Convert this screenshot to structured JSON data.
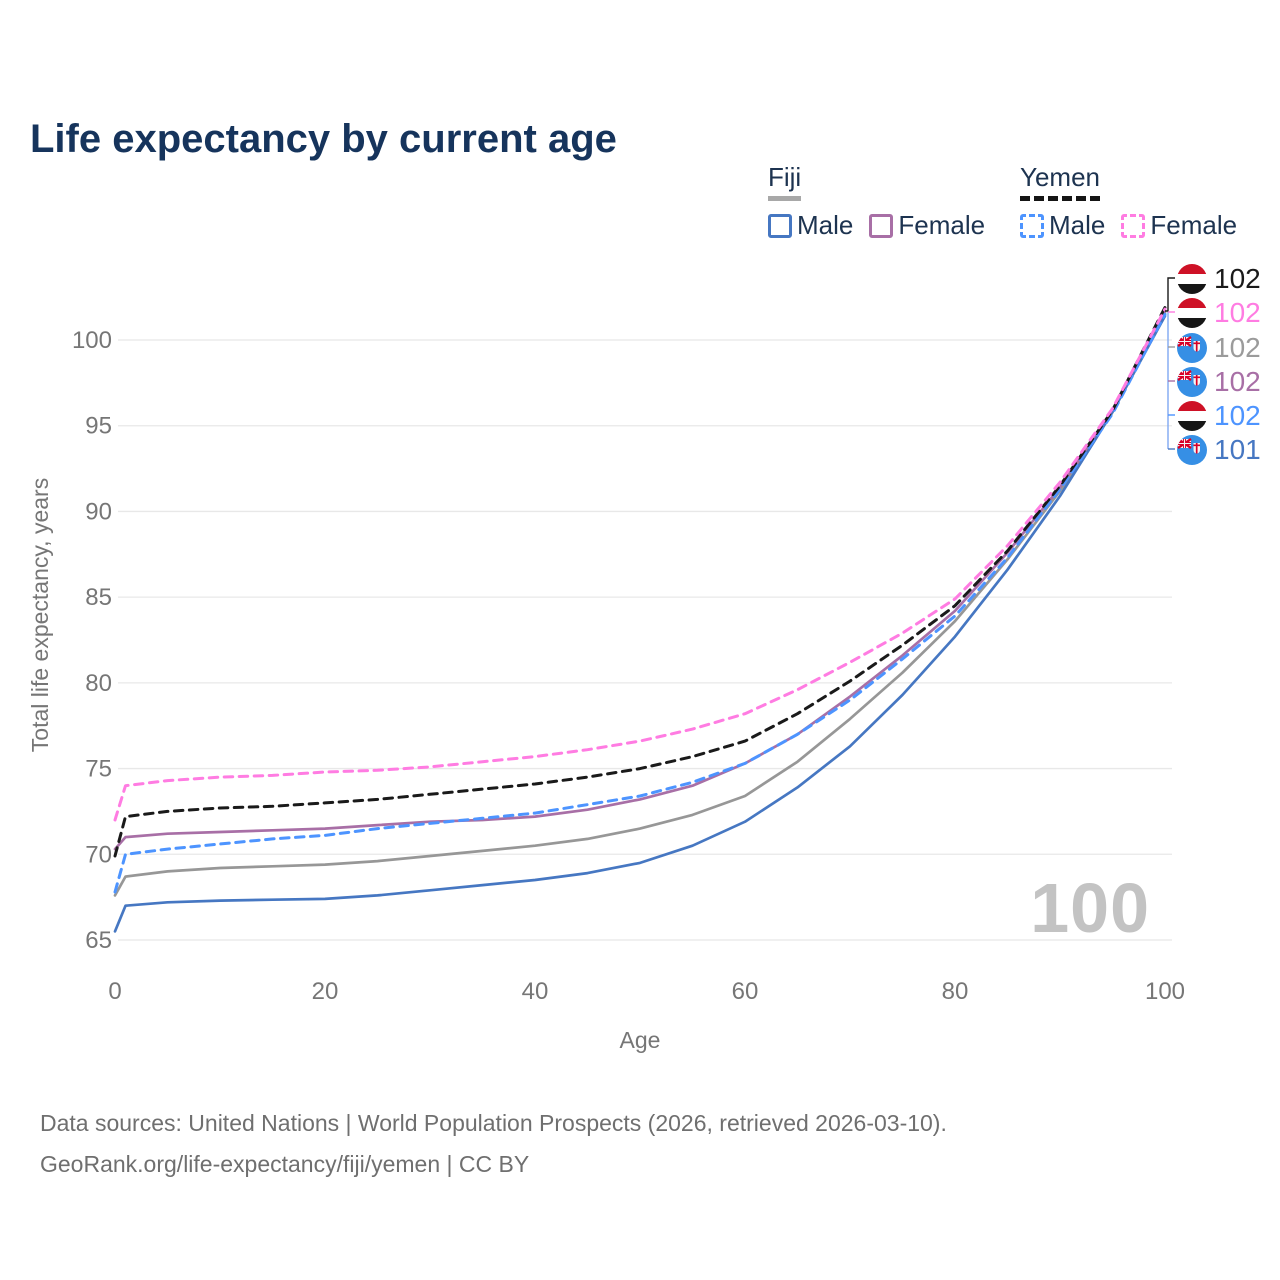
{
  "title": "Life expectancy by current age",
  "legend": {
    "fiji": {
      "title": "Fiji",
      "male": "Male",
      "female": "Female"
    },
    "yemen": {
      "title": "Yemen",
      "male": "Male",
      "female": "Female"
    }
  },
  "watermark": "100",
  "caption": {
    "line1": "Data sources: United Nations | World Population Prospects (2026, retrieved 2026-03-10).",
    "line2": "GeoRank.org/life-expectancy/fiji/yemen | CC BY"
  },
  "colors": {
    "fiji_male": "#4677c2",
    "fiji_female": "#a86fa6",
    "fiji_all": "#979797",
    "yemen_male": "#4d94ff",
    "yemen_female": "#ff7ce2",
    "yemen_all": "#1a1a1a",
    "title_text": "#16345c",
    "legend_text": "#1d3350",
    "axis_text": "#767676",
    "gridline": "#e8e8e8",
    "watermark": "#c3c3c3",
    "caption": "#6f6f6f"
  },
  "chart_data": {
    "type": "line",
    "title": "Life expectancy by current age",
    "xlabel": "Age",
    "ylabel": "Total life expectancy, years",
    "xticks": [
      0,
      20,
      40,
      60,
      80,
      100
    ],
    "yticks": [
      65,
      70,
      75,
      80,
      85,
      90,
      95,
      100
    ],
    "xlim": [
      0,
      100
    ],
    "ylim": [
      65,
      102
    ],
    "grid": "horizontal-only",
    "legend_position": "top-right",
    "ages": [
      0,
      1,
      5,
      10,
      15,
      20,
      25,
      30,
      35,
      40,
      45,
      50,
      55,
      60,
      65,
      70,
      75,
      80,
      85,
      90,
      95,
      100
    ],
    "series": [
      {
        "name": "Fiji",
        "country": "Fiji",
        "sex": "both",
        "style": "solid",
        "color_key": "fiji_all",
        "color": "#979797",
        "values": [
          67.6,
          68.7,
          69.0,
          69.2,
          69.3,
          69.4,
          69.6,
          69.9,
          70.2,
          70.5,
          70.9,
          71.5,
          72.3,
          73.4,
          75.4,
          77.9,
          80.6,
          83.6,
          87.2,
          91.2,
          95.8,
          101.6
        ]
      },
      {
        "name": "Fiji Female",
        "country": "Fiji",
        "sex": "female",
        "style": "solid",
        "color_key": "fiji_female",
        "color": "#a86fa6",
        "values": [
          70.3,
          71.0,
          71.2,
          71.3,
          71.4,
          71.5,
          71.7,
          71.9,
          72.0,
          72.2,
          72.6,
          73.2,
          74.0,
          75.3,
          77.0,
          79.2,
          81.6,
          84.2,
          87.6,
          91.4,
          95.9,
          101.7
        ]
      },
      {
        "name": "Fiji Male",
        "country": "Fiji",
        "sex": "male",
        "style": "solid",
        "color_key": "fiji_male",
        "color": "#4677c2",
        "values": [
          65.5,
          67.0,
          67.2,
          67.3,
          67.35,
          67.4,
          67.6,
          67.9,
          68.2,
          68.5,
          68.9,
          69.5,
          70.5,
          71.9,
          73.9,
          76.3,
          79.3,
          82.7,
          86.6,
          90.9,
          95.8,
          101.4
        ]
      },
      {
        "name": "Yemen Male",
        "country": "Yemen",
        "sex": "male",
        "style": "dashed",
        "color_key": "yemen_male",
        "color": "#4d94ff",
        "values": [
          67.8,
          70.0,
          70.3,
          70.6,
          70.9,
          71.1,
          71.5,
          71.8,
          72.1,
          72.4,
          72.9,
          73.4,
          74.2,
          75.3,
          77.0,
          79.0,
          81.4,
          83.9,
          87.3,
          91.3,
          95.7,
          101.5
        ]
      },
      {
        "name": "Yemen",
        "country": "Yemen",
        "sex": "both",
        "style": "dashed",
        "color_key": "yemen_all",
        "color": "#1a1a1a",
        "values": [
          69.9,
          72.2,
          72.5,
          72.7,
          72.8,
          73.0,
          73.2,
          73.5,
          73.8,
          74.1,
          74.5,
          75.0,
          75.7,
          76.6,
          78.2,
          80.1,
          82.2,
          84.5,
          87.7,
          91.5,
          95.9,
          101.9
        ]
      },
      {
        "name": "Yemen Female",
        "country": "Yemen",
        "sex": "female",
        "style": "dashed",
        "color_key": "yemen_female",
        "color": "#ff7ce2",
        "values": [
          72.0,
          74.0,
          74.3,
          74.5,
          74.6,
          74.8,
          74.9,
          75.1,
          75.4,
          75.7,
          76.1,
          76.6,
          77.3,
          78.2,
          79.6,
          81.2,
          82.9,
          84.9,
          88.0,
          91.7,
          96.0,
          101.8
        ]
      }
    ],
    "end_labels": [
      {
        "series": "Yemen",
        "flag": "yemen",
        "value": "102",
        "color": "#1a1a1a"
      },
      {
        "series": "Yemen Female",
        "flag": "yemen",
        "value": "102",
        "color": "#ff7ce2"
      },
      {
        "series": "Fiji",
        "flag": "fiji",
        "value": "102",
        "color": "#9b9b9b"
      },
      {
        "series": "Fiji Female",
        "flag": "fiji",
        "value": "102",
        "color": "#a86fa6"
      },
      {
        "series": "Yemen Male",
        "flag": "yemen",
        "value": "102",
        "color": "#4d94ff"
      },
      {
        "series": "Fiji Male",
        "flag": "fiji",
        "value": "101",
        "color": "#4677c2"
      }
    ]
  }
}
